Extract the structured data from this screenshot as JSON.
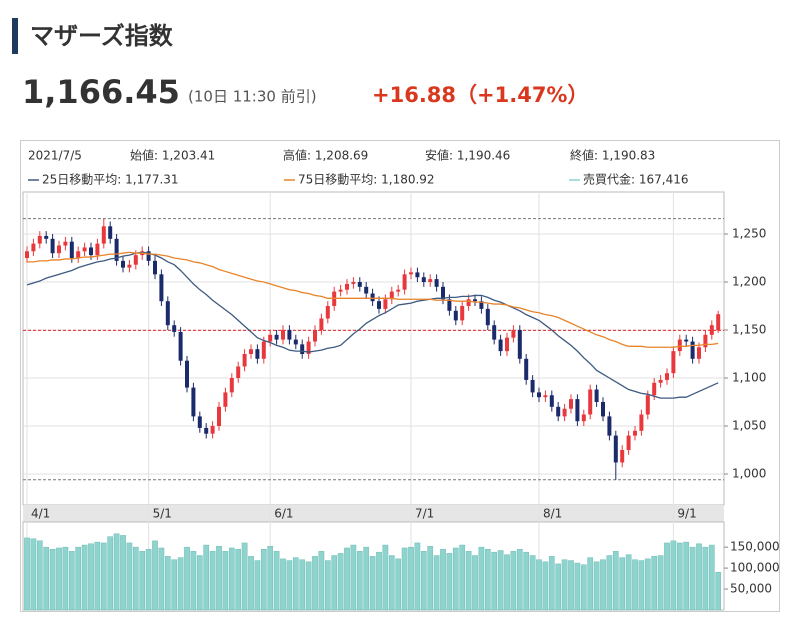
{
  "header": {
    "title": "マザーズ指数",
    "price": "1,166.45",
    "time": "(10日 11:30 前引)",
    "change": "+16.88（+1.47%）"
  },
  "hover": {
    "date": "2021/7/5",
    "open": "始値: 1,203.41",
    "high": "高値: 1,208.69",
    "low": "安値: 1,190.46",
    "close": "終値: 1,190.83",
    "ma25": "25日移動平均: 1,177.31",
    "ma75": "75日移動平均: 1,180.92",
    "volume": "売買代金: 167,416"
  },
  "chart_data": [
    {
      "type": "candlestick",
      "categories": [
        "4/1",
        null,
        null,
        null,
        null,
        null,
        null,
        null,
        null,
        null,
        null,
        null,
        null,
        null,
        null,
        null,
        null,
        null,
        null,
        "5/1",
        null,
        null,
        null,
        null,
        null,
        null,
        null,
        null,
        null,
        null,
        null,
        null,
        null,
        null,
        null,
        null,
        null,
        null,
        "6/1",
        null,
        null,
        null,
        null,
        null,
        null,
        null,
        null,
        null,
        null,
        null,
        null,
        null,
        null,
        null,
        null,
        null,
        null,
        null,
        null,
        null,
        "7/1",
        null,
        null,
        null,
        null,
        null,
        null,
        null,
        null,
        null,
        null,
        null,
        null,
        null,
        null,
        null,
        null,
        null,
        null,
        null,
        "8/1",
        null,
        null,
        null,
        null,
        null,
        null,
        null,
        null,
        null,
        null,
        null,
        null,
        null,
        null,
        null,
        null,
        null,
        null,
        null,
        null,
        "9/1",
        null,
        null,
        null,
        null,
        null,
        null,
        null
      ],
      "open": [
        1225,
        1232,
        1240,
        1248,
        1245,
        1230,
        1238,
        1242,
        1225,
        1232,
        1236,
        1228,
        1240,
        1258,
        1245,
        1222,
        1215,
        1218,
        1228,
        1232,
        1222,
        1208,
        1180,
        1155,
        1148,
        1118,
        1090,
        1060,
        1048,
        1042,
        1050,
        1070,
        1085,
        1100,
        1112,
        1125,
        1130,
        1120,
        1138,
        1145,
        1140,
        1150,
        1140,
        1135,
        1125,
        1138,
        1150,
        1162,
        1175,
        1190,
        1192,
        1198,
        1200,
        1195,
        1188,
        1180,
        1172,
        1182,
        1190,
        1192,
        1208,
        1210,
        1205,
        1200,
        1203,
        1195,
        1182,
        1170,
        1160,
        1175,
        1182,
        1180,
        1172,
        1155,
        1140,
        1128,
        1142,
        1150,
        1120,
        1098,
        1085,
        1080,
        1082,
        1070,
        1060,
        1068,
        1078,
        1055,
        1062,
        1088,
        1075,
        1060,
        1040,
        1012,
        1025,
        1040,
        1045,
        1062,
        1082,
        1095,
        1098,
        1105,
        1128,
        1140,
        1138,
        1120,
        1132,
        1145,
        1149.57
      ],
      "high": [
        1237,
        1245,
        1253,
        1253,
        1250,
        1243,
        1247,
        1247,
        1237,
        1241,
        1241,
        1245,
        1266,
        1263,
        1250,
        1227,
        1223,
        1233,
        1237,
        1237,
        1227,
        1213,
        1185,
        1160,
        1153,
        1123,
        1095,
        1065,
        1053,
        1055,
        1075,
        1090,
        1105,
        1117,
        1130,
        1135,
        1135,
        1143,
        1150,
        1150,
        1155,
        1155,
        1145,
        1140,
        1143,
        1155,
        1167,
        1180,
        1195,
        1197,
        1203,
        1205,
        1205,
        1200,
        1193,
        1185,
        1187,
        1195,
        1197,
        1213,
        1215,
        1215,
        1210,
        1208,
        1208,
        1200,
        1187,
        1175,
        1180,
        1187,
        1187,
        1185,
        1177,
        1160,
        1145,
        1147,
        1155,
        1155,
        1125,
        1103,
        1090,
        1087,
        1087,
        1075,
        1073,
        1083,
        1083,
        1067,
        1093,
        1093,
        1080,
        1065,
        1045,
        1030,
        1045,
        1050,
        1067,
        1087,
        1100,
        1103,
        1110,
        1133,
        1145,
        1145,
        1143,
        1137,
        1150,
        1160,
        1170
      ],
      "low": [
        1220,
        1227,
        1235,
        1240,
        1225,
        1225,
        1233,
        1220,
        1220,
        1227,
        1223,
        1223,
        1235,
        1240,
        1217,
        1210,
        1210,
        1213,
        1223,
        1217,
        1203,
        1175,
        1150,
        1143,
        1113,
        1085,
        1055,
        1043,
        1037,
        1037,
        1045,
        1065,
        1080,
        1095,
        1107,
        1120,
        1115,
        1115,
        1133,
        1135,
        1135,
        1135,
        1130,
        1120,
        1120,
        1133,
        1145,
        1157,
        1170,
        1185,
        1187,
        1193,
        1190,
        1183,
        1175,
        1167,
        1167,
        1177,
        1185,
        1187,
        1203,
        1200,
        1195,
        1195,
        1190,
        1177,
        1165,
        1155,
        1155,
        1170,
        1175,
        1167,
        1150,
        1135,
        1123,
        1123,
        1137,
        1115,
        1093,
        1080,
        1075,
        1075,
        1065,
        1055,
        1055,
        1063,
        1050,
        1050,
        1057,
        1070,
        1055,
        1035,
        994,
        1007,
        1020,
        1035,
        1040,
        1057,
        1077,
        1090,
        1093,
        1100,
        1123,
        1133,
        1115,
        1115,
        1127,
        1140,
        1147
      ],
      "close": [
        1232,
        1240,
        1248,
        1245,
        1230,
        1238,
        1242,
        1225,
        1232,
        1236,
        1228,
        1240,
        1258,
        1245,
        1222,
        1215,
        1218,
        1228,
        1232,
        1222,
        1208,
        1180,
        1155,
        1148,
        1118,
        1090,
        1060,
        1048,
        1042,
        1050,
        1070,
        1085,
        1100,
        1112,
        1125,
        1130,
        1120,
        1138,
        1145,
        1140,
        1150,
        1140,
        1135,
        1125,
        1138,
        1150,
        1162,
        1175,
        1190,
        1192,
        1198,
        1200,
        1195,
        1188,
        1180,
        1172,
        1182,
        1190,
        1192,
        1208,
        1210,
        1205,
        1200,
        1203,
        1195,
        1182,
        1170,
        1160,
        1175,
        1182,
        1180,
        1172,
        1155,
        1140,
        1128,
        1142,
        1150,
        1120,
        1098,
        1085,
        1080,
        1082,
        1070,
        1060,
        1068,
        1078,
        1055,
        1062,
        1088,
        1075,
        1060,
        1040,
        1012,
        1025,
        1040,
        1045,
        1062,
        1082,
        1095,
        1098,
        1105,
        1128,
        1140,
        1138,
        1120,
        1132,
        1145,
        1155,
        1166.45
      ],
      "up_color": "#e8383d",
      "down_color": "#1b2a6b",
      "series": [
        {
          "color": "#3d5a80",
          "values": [
            1197,
            1199,
            1201,
            1204,
            1206,
            1208,
            1210,
            1212,
            1215,
            1217,
            1219,
            1221,
            1222,
            1224,
            1225,
            1227,
            1228,
            1230,
            1231,
            1230,
            1228,
            1225,
            1221,
            1218,
            1212,
            1205,
            1198,
            1192,
            1187,
            1181,
            1176,
            1171,
            1166,
            1160,
            1154,
            1148,
            1142,
            1139,
            1137,
            1134,
            1132,
            1129,
            1128,
            1128,
            1127,
            1128,
            1129,
            1131,
            1132,
            1134,
            1140,
            1146,
            1151,
            1157,
            1161,
            1165,
            1168,
            1172,
            1176,
            1177,
            1178,
            1180,
            1181,
            1182,
            1183,
            1183,
            1184,
            1184,
            1185,
            1185,
            1186,
            1186,
            1184,
            1181,
            1179,
            1176,
            1173,
            1170,
            1166,
            1163,
            1160,
            1155,
            1150,
            1144,
            1139,
            1134,
            1128,
            1121,
            1115,
            1108,
            1104,
            1100,
            1096,
            1092,
            1088,
            1086,
            1084,
            1083,
            1081,
            1079,
            1079,
            1079,
            1080,
            1080,
            1083,
            1086,
            1089,
            1092,
            1095
          ]
        },
        {
          "color": "#e8842a",
          "values": [
            1221,
            1221,
            1222,
            1222,
            1223,
            1223,
            1224,
            1224,
            1225,
            1226,
            1226,
            1227,
            1228,
            1229,
            1229,
            1230,
            1231,
            1230,
            1230,
            1229,
            1229,
            1228,
            1227,
            1225,
            1224,
            1223,
            1221,
            1220,
            1218,
            1216,
            1213,
            1211,
            1209,
            1207,
            1205,
            1203,
            1201,
            1200,
            1198,
            1196,
            1194,
            1192,
            1191,
            1189,
            1188,
            1186,
            1185,
            1183,
            1183,
            1183,
            1183,
            1183,
            1183,
            1183,
            1183,
            1183,
            1183,
            1183,
            1182,
            1182,
            1182,
            1182,
            1182,
            1182,
            1181,
            1181,
            1181,
            1180,
            1180,
            1180,
            1179,
            1179,
            1178,
            1177,
            1177,
            1176,
            1174,
            1173,
            1171,
            1169,
            1168,
            1166,
            1165,
            1163,
            1160,
            1157,
            1154,
            1151,
            1148,
            1145,
            1143,
            1140,
            1138,
            1135,
            1133,
            1133,
            1133,
            1132,
            1132,
            1132,
            1132,
            1132,
            1133,
            1133,
            1134,
            1134,
            1135,
            1135,
            1136
          ]
        }
      ],
      "ylim": [
        967.7,
        1293.75
      ],
      "yticks": [
        {
          "value": 1000,
          "label": "1,000"
        },
        {
          "value": 1050,
          "label": "1,050"
        },
        {
          "value": 1100,
          "label": "1,100"
        },
        {
          "value": 1150,
          "label": "1,150"
        },
        {
          "value": 1200,
          "label": "1,200"
        },
        {
          "value": 1250,
          "label": "1,250"
        }
      ],
      "prev_close": 1149.57,
      "range_lines": [
        1266,
        994
      ],
      "grid": true
    },
    {
      "type": "bar",
      "color": "#8ed3cd",
      "values": [
        172000,
        170000,
        165000,
        150000,
        145000,
        148000,
        150000,
        140000,
        150000,
        155000,
        158000,
        162000,
        160000,
        175000,
        182000,
        178000,
        160000,
        150000,
        140000,
        145000,
        165000,
        148000,
        128000,
        120000,
        125000,
        150000,
        140000,
        130000,
        155000,
        140000,
        152000,
        140000,
        148000,
        145000,
        160000,
        128000,
        118000,
        145000,
        152000,
        140000,
        122000,
        118000,
        125000,
        120000,
        115000,
        128000,
        140000,
        118000,
        130000,
        135000,
        148000,
        155000,
        140000,
        150000,
        128000,
        138000,
        155000,
        130000,
        122000,
        148000,
        150000,
        160000,
        140000,
        152000,
        130000,
        145000,
        135000,
        148000,
        155000,
        140000,
        130000,
        150000,
        145000,
        138000,
        142000,
        132000,
        140000,
        145000,
        138000,
        130000,
        120000,
        115000,
        128000,
        110000,
        120000,
        118000,
        112000,
        108000,
        125000,
        115000,
        120000,
        130000,
        140000,
        125000,
        132000,
        120000,
        118000,
        122000,
        128000,
        130000,
        160000,
        165000,
        160000,
        162000,
        150000,
        158000,
        150000,
        155000,
        90000
      ],
      "ylim": [
        0,
        210000
      ],
      "yticks": [
        {
          "value": 50000,
          "label": "50,000"
        },
        {
          "value": 100000,
          "label": "100,000"
        },
        {
          "value": 150000,
          "label": "150,000"
        }
      ]
    }
  ]
}
